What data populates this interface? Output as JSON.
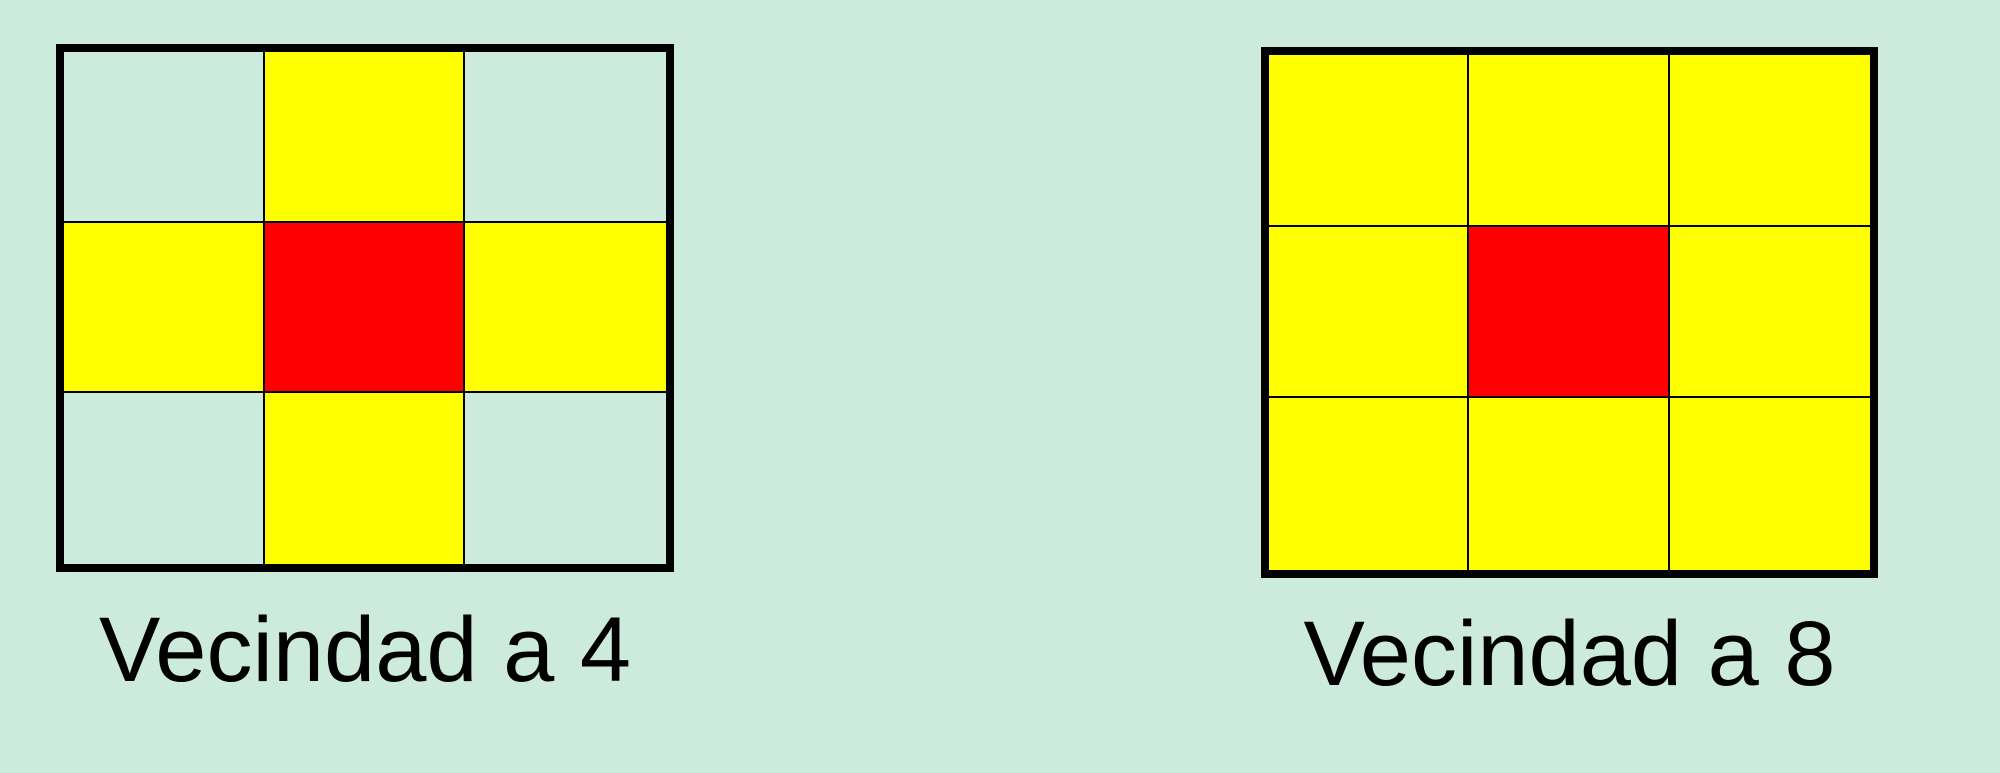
{
  "colors": {
    "background": "#CCEBDD",
    "neighbor": "#FFFF00",
    "center": "#FF0000",
    "empty": "#CCEBDD",
    "line": "#000000"
  },
  "panels": [
    {
      "caption": "Vecindad a 4",
      "cells": [
        [
          "empty",
          "neighbor",
          "empty"
        ],
        [
          "neighbor",
          "center",
          "neighbor"
        ],
        [
          "empty",
          "neighbor",
          "empty"
        ]
      ]
    },
    {
      "caption": "Vecindad a 8",
      "cells": [
        [
          "neighbor",
          "neighbor",
          "neighbor"
        ],
        [
          "neighbor",
          "center",
          "neighbor"
        ],
        [
          "neighbor",
          "neighbor",
          "neighbor"
        ]
      ]
    }
  ]
}
